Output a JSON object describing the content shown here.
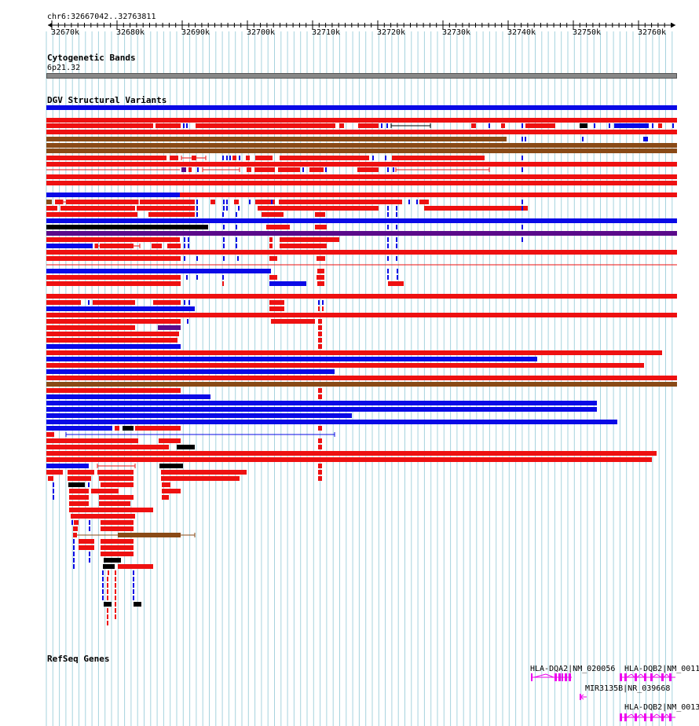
{
  "location": "chr6:32667042..32763811",
  "ruler_ticks": [
    "32670k",
    "32680k",
    "32690k",
    "32700k",
    "32710k",
    "32720k",
    "32730k",
    "32740k",
    "32750k",
    "32760k"
  ],
  "tracks": {
    "cytoband": {
      "title": "Cytogenetic Bands",
      "band": "6p21.32"
    },
    "dgv": {
      "title": "DGV Structural Variants"
    },
    "refseq": {
      "title": "RefSeq Genes",
      "genes": [
        {
          "label": "HLA-DQA2|NM_020056"
        },
        {
          "label": "HLA-DQB2|NM_0011"
        },
        {
          "label": "MIR3135B|NR_039668"
        },
        {
          "label": "HLA-DQB2|NM_0013"
        }
      ]
    }
  },
  "colors": {
    "grid": "#a6d3de",
    "loss": "#ee1111",
    "gain": "#0a0ae6",
    "complex": "#8a4a16",
    "inversion": "#000000",
    "other": "#5a0a8a",
    "gene": "#ee00ee"
  }
}
